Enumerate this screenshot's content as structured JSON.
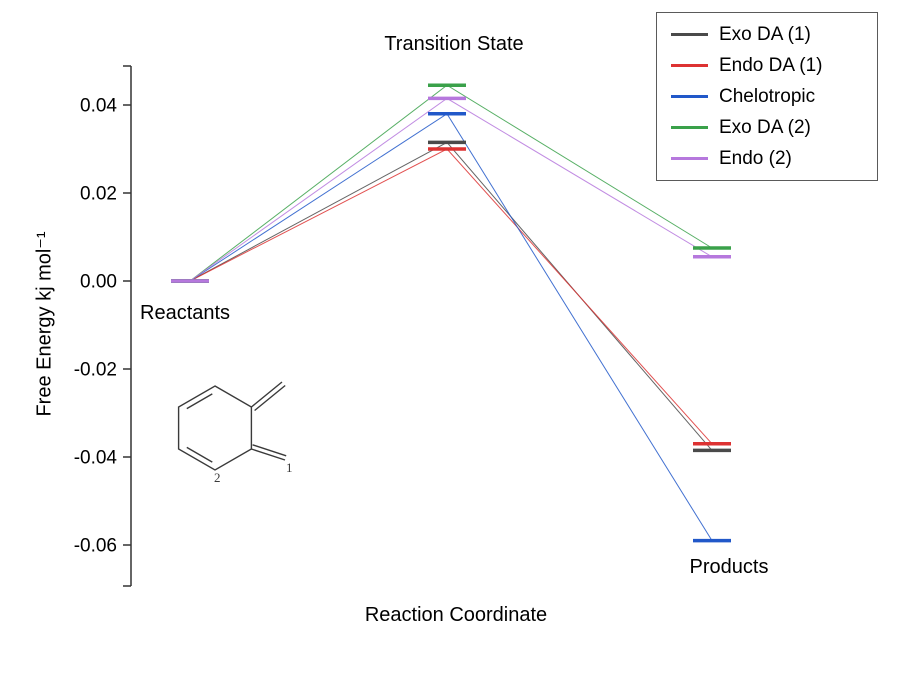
{
  "chart_data": {
    "type": "line",
    "title": "",
    "xlabel": "Reaction Coordinate",
    "ylabel": "Free Energy kj mol⁻¹",
    "categories": [
      "Reactants",
      "Transition State",
      "Products"
    ],
    "grid": false,
    "legend_position": "top-right",
    "ylim": [
      -0.069,
      0.049
    ],
    "yticks": [
      {
        "value": 0.04,
        "label": "0.04"
      },
      {
        "value": 0.02,
        "label": "0.02"
      },
      {
        "value": 0.0,
        "label": "0.00"
      },
      {
        "value": -0.02,
        "label": "-0.02"
      },
      {
        "value": -0.04,
        "label": "-0.04"
      },
      {
        "value": -0.06,
        "label": "-0.06"
      }
    ],
    "series": [
      {
        "name": "Exo DA (1)",
        "color": "#4a4a4a",
        "values": [
          0.0,
          0.0315,
          -0.0385
        ]
      },
      {
        "name": "Endo DA (1)",
        "color": "#dd3232",
        "values": [
          0.0,
          0.03,
          -0.037
        ]
      },
      {
        "name": "Chelotropic",
        "color": "#2158c9",
        "values": [
          0.0,
          0.038,
          -0.059
        ]
      },
      {
        "name": "Exo DA (2)",
        "color": "#3aa14a",
        "values": [
          0.0,
          0.0445,
          0.0075
        ]
      },
      {
        "name": "Endo (2)",
        "color": "#b678dd",
        "values": [
          0.0,
          0.0415,
          0.0055
        ]
      }
    ],
    "annotations": {
      "transition_state": "Transition State",
      "reactants": "Reactants",
      "products": "Products"
    }
  },
  "molecule": {
    "name": "o-quinodimethane",
    "label_1": "1",
    "label_2": "2"
  }
}
